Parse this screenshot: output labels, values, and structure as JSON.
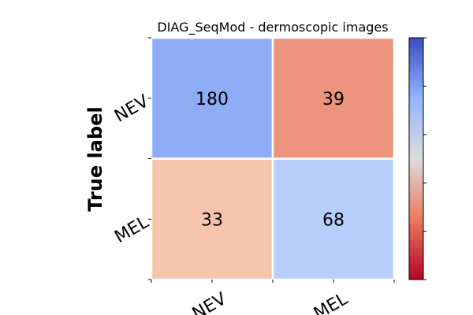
{
  "chart_data": {
    "type": "heatmap",
    "title": "DIAG_SeqMod - dermoscopic images",
    "xlabel": "",
    "ylabel": "True label",
    "x_categories": [
      "NEV",
      "MEL"
    ],
    "y_categories": [
      "NEV",
      "MEL"
    ],
    "values": [
      [
        180,
        39
      ],
      [
        33,
        68
      ]
    ],
    "colormap": "coolwarm_r",
    "colorbar": {
      "shown": true,
      "tick_labels": []
    },
    "grid": false,
    "colors": {
      "180": "#8fadf7",
      "39": "#ec937d",
      "33": "#f6c4ad",
      "68": "#b8cffe"
    }
  }
}
